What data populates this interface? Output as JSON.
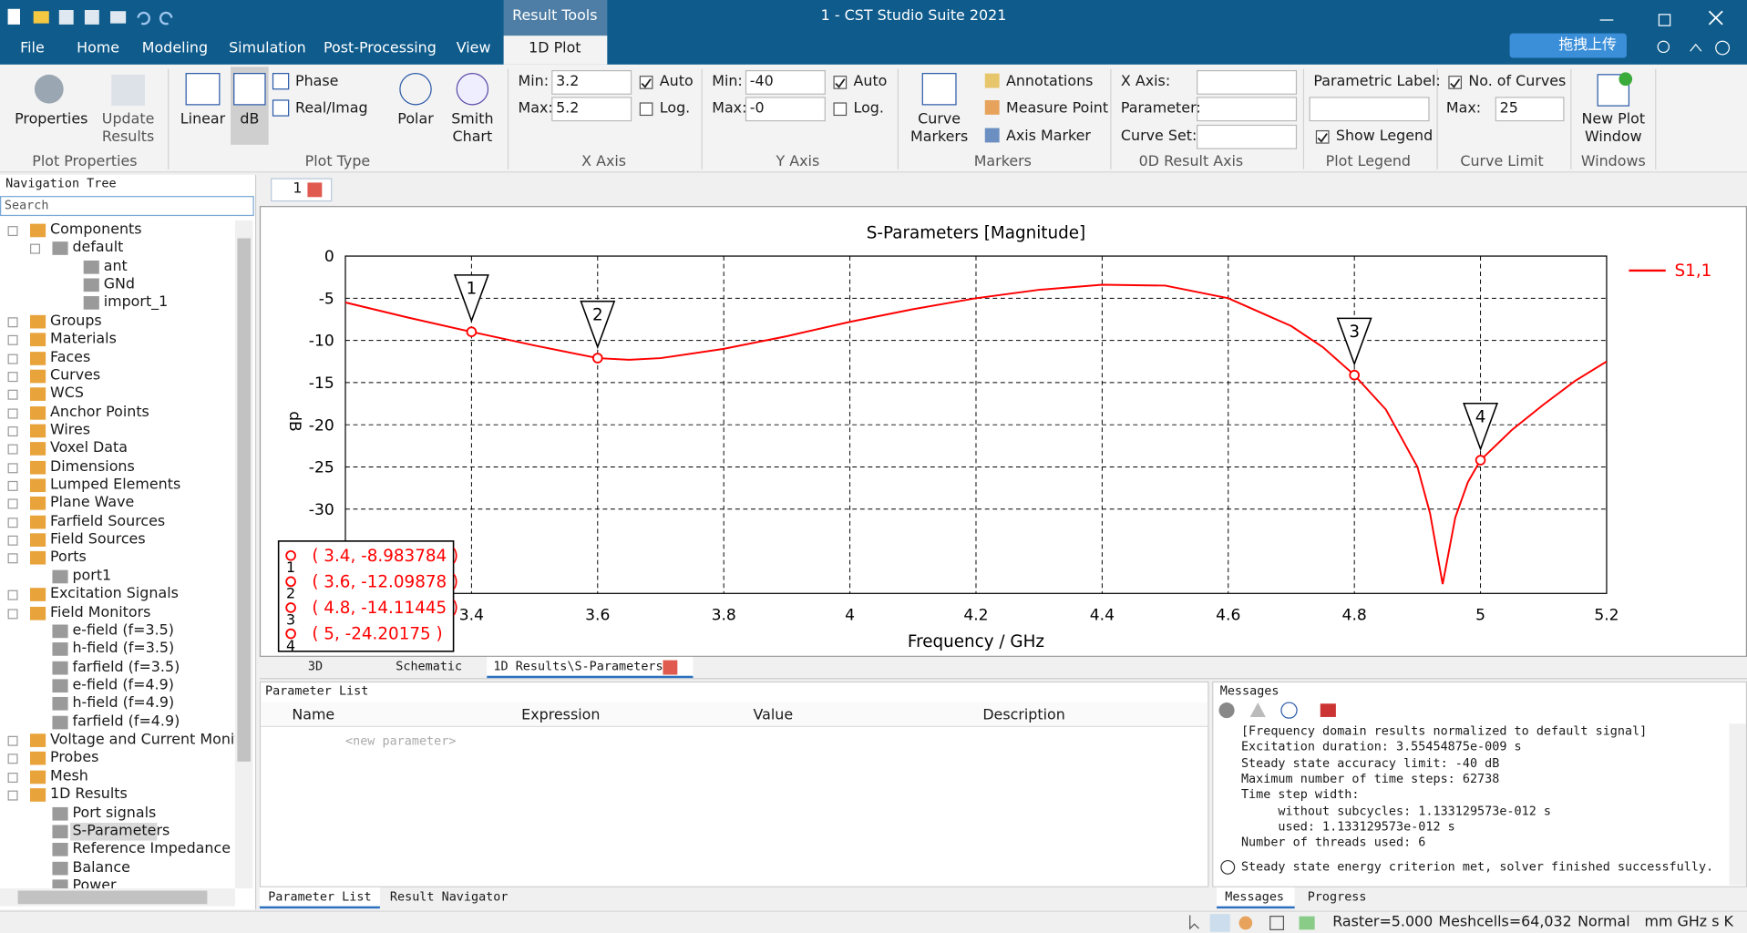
{
  "window": {
    "contextual_tab": "Result Tools",
    "title": "1 - CST Studio Suite 2021",
    "cloud_button": "拖拽上传"
  },
  "menu_tabs": [
    "File",
    "Home",
    "Modeling",
    "Simulation",
    "Post-Processing",
    "View",
    "1D Plot"
  ],
  "ribbon": {
    "groups": [
      "Plot Properties",
      "Plot Type",
      "X Axis",
      "Y Axis",
      "Markers",
      "0D Result Axis",
      "Plot Legend",
      "Curve Limit",
      "Windows"
    ],
    "properties": "Properties",
    "update_results": "Update Results",
    "linear": "Linear",
    "db": "dB",
    "phase": "Phase",
    "real_imag": "Real/Imag",
    "polar": "Polar",
    "smith_chart": "Smith Chart",
    "x_axis": {
      "min_label": "Min:",
      "min": "3.2",
      "max_label": "Max:",
      "max": "5.2",
      "auto": "Auto",
      "log": "Log."
    },
    "y_axis": {
      "min_label": "Min:",
      "min": "-40",
      "max_label": "Max:",
      "max": "-0",
      "auto": "Auto",
      "log": "Log."
    },
    "curve_markers": "Curve Markers",
    "annotations": "Annotations",
    "measure_point": "Measure Point",
    "axis_marker": "Axis Marker",
    "result_axis": {
      "x_axis": "X Axis:",
      "parameter": "Parameter:",
      "curve_set": "Curve Set:"
    },
    "parametric_label": "Parametric Label:",
    "show_legend": "Show Legend",
    "no_of_curves": "No. of Curves",
    "max_label": "Max:",
    "max_curves": "25",
    "new_plot_window": "New Plot Window"
  },
  "navigation_tree": {
    "title": "Navigation Tree",
    "search_placeholder": "Search",
    "items": [
      {
        "label": "Components",
        "children": [
          {
            "label": "default",
            "children": [
              {
                "label": "ant"
              },
              {
                "label": "GNd"
              },
              {
                "label": "import_1"
              }
            ]
          }
        ]
      },
      {
        "label": "Groups"
      },
      {
        "label": "Materials"
      },
      {
        "label": "Faces"
      },
      {
        "label": "Curves"
      },
      {
        "label": "WCS"
      },
      {
        "label": "Anchor Points"
      },
      {
        "label": "Wires"
      },
      {
        "label": "Voxel Data"
      },
      {
        "label": "Dimensions"
      },
      {
        "label": "Lumped Elements"
      },
      {
        "label": "Plane Wave"
      },
      {
        "label": "Farfield Sources"
      },
      {
        "label": "Field Sources"
      },
      {
        "label": "Ports",
        "children": [
          {
            "label": "port1"
          }
        ]
      },
      {
        "label": "Excitation Signals"
      },
      {
        "label": "Field Monitors",
        "children": [
          {
            "label": "e-field (f=3.5)"
          },
          {
            "label": "h-field (f=3.5)"
          },
          {
            "label": "farfield (f=3.5)"
          },
          {
            "label": "e-field (f=4.9)"
          },
          {
            "label": "h-field (f=4.9)"
          },
          {
            "label": "farfield (f=4.9)"
          }
        ]
      },
      {
        "label": "Voltage and Current Monitors"
      },
      {
        "label": "Probes"
      },
      {
        "label": "Mesh"
      },
      {
        "label": "1D Results",
        "children": [
          {
            "label": "Port signals"
          },
          {
            "label": "S-Parameters",
            "selected": true
          },
          {
            "label": "Reference Impedance"
          },
          {
            "label": "Balance"
          },
          {
            "label": "Power"
          }
        ]
      }
    ]
  },
  "document_tab": "1",
  "view_tabs": [
    "3D",
    "Schematic",
    "1D Results\\S-Parameters"
  ],
  "parameter_list": {
    "title": "Parameter List",
    "columns": [
      "Name",
      "Expression",
      "Value",
      "Description"
    ],
    "new_row": "<new parameter>"
  },
  "bottom_left_tabs": [
    "Parameter List",
    "Result Navigator"
  ],
  "messages": {
    "title": "Messages",
    "lines": [
      "[Frequency domain results normalized to default signal]",
      "Excitation duration: 3.55454875e-009 s",
      "Steady state accuracy limit: -40 dB",
      "Maximum number of time steps: 62738",
      "Time step width:",
      "     without subcycles: 1.133129573e-012 s",
      "     used: 1.133129573e-012 s",
      "Number of threads used: 6"
    ],
    "info": "Steady state energy criterion met, solver finished successfully.",
    "tabs": [
      "Messages",
      "Progress"
    ]
  },
  "status_bar": [
    "Raster=5.000",
    "Meshcells=64,032",
    "Normal",
    "mm GHz s K"
  ],
  "chart_data": {
    "type": "line",
    "title": "S-Parameters [Magnitude]",
    "x_label": "Frequency / GHz",
    "y_label": "dB",
    "x": [
      3.2,
      3.3,
      3.4,
      3.5,
      3.6,
      3.65,
      3.7,
      3.8,
      3.9,
      4.0,
      4.1,
      4.2,
      4.3,
      4.4,
      4.5,
      4.6,
      4.7,
      4.75,
      4.8,
      4.85,
      4.9,
      4.92,
      4.94,
      4.96,
      4.98,
      5.0,
      5.05,
      5.1,
      5.15,
      5.2
    ],
    "series": [
      {
        "name": "S1,1",
        "color": "#ff0000",
        "values": [
          -5.5,
          -7.3,
          -8.983784,
          -10.6,
          -12.09878,
          -12.3,
          -12.1,
          -11.0,
          -9.5,
          -7.8,
          -6.3,
          -5.0,
          -4.0,
          -3.4,
          -3.5,
          -5.0,
          -8.3,
          -10.8,
          -14.11445,
          -18.2,
          -25.0,
          -30.5,
          -38.9,
          -31.0,
          -26.8,
          -24.20175,
          -20.6,
          -17.6,
          -14.8,
          -12.5
        ]
      }
    ],
    "markers": [
      {
        "label": "1",
        "x": 3.4,
        "y": -8.983784,
        "text": "( 3.4, -8.983784 )"
      },
      {
        "label": "2",
        "x": 3.6,
        "y": -12.09878,
        "text": "( 3.6, -12.09878 )"
      },
      {
        "label": "3",
        "x": 4.8,
        "y": -14.11445,
        "text": "( 4.8, -14.11445 )"
      },
      {
        "label": "4",
        "x": 5,
        "y": -24.20175,
        "text": "( 5, -24.20175 )"
      }
    ],
    "xlim": [
      3.2,
      5.2
    ],
    "xticks": [
      3.4,
      3.6,
      3.8,
      4,
      4.2,
      4.4,
      4.6,
      4.8,
      5,
      5.2
    ],
    "ylim": [
      -40,
      0
    ],
    "yticks": [
      0,
      -5,
      -10,
      -15,
      -20,
      -25,
      -30
    ],
    "grid": true,
    "legend": "top-right"
  }
}
